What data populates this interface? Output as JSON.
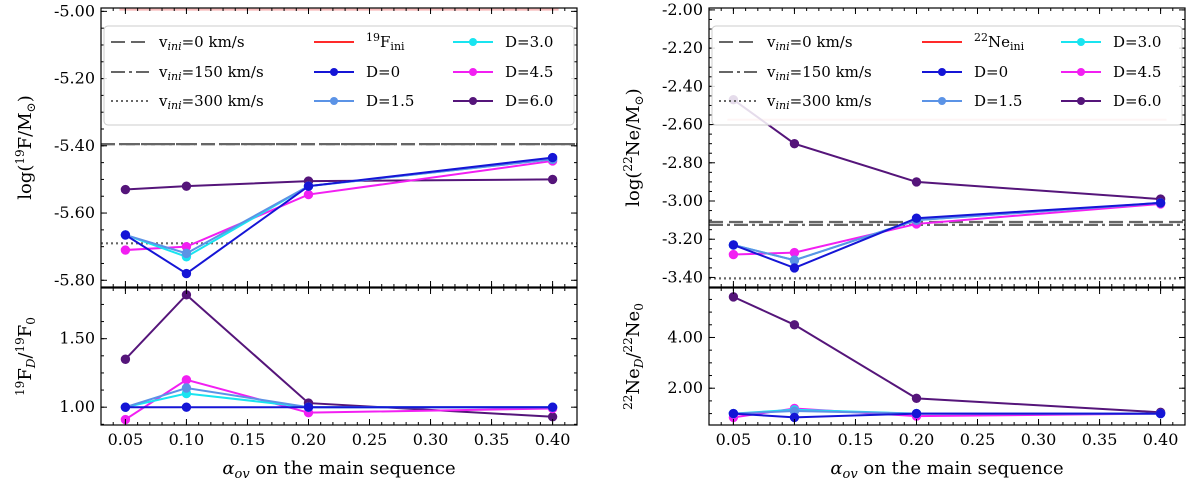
{
  "chart_data": [
    {
      "id": "F",
      "type": "line",
      "x": [
        0.05,
        0.1,
        0.2,
        0.4
      ],
      "xlabel": "on the main sequence",
      "xlabel_symbol": "α",
      "xlabel_sub": "ov",
      "xlim": [
        0.03,
        0.42
      ],
      "xticks": [
        0.05,
        0.1,
        0.15,
        0.2,
        0.25,
        0.3,
        0.35,
        0.4
      ],
      "xtick_labels": [
        "0.05",
        "0.10",
        "0.15",
        "0.20",
        "0.25",
        "0.30",
        "0.35",
        "0.40"
      ],
      "top": {
        "ylabel": "log(19F/M⊙)",
        "ylabel_parts": {
          "pre": "log(",
          "sup": "19",
          "mid": "F/M",
          "sym": "⊙",
          "post": ")"
        },
        "ylim": [
          -5.82,
          -4.99
        ],
        "yticks": [
          -5.8,
          -5.6,
          -5.4,
          -5.2,
          -5.0
        ],
        "ytick_labels": [
          "-5.80",
          "-5.60",
          "-5.40",
          "-5.20",
          "-5.00"
        ],
        "reference_lines": [
          {
            "name": "initial",
            "y": -4.995
          },
          {
            "name": "vini0",
            "y": -5.395
          },
          {
            "name": "vini150",
            "y": -5.395
          },
          {
            "name": "vini300",
            "y": -5.69
          }
        ],
        "series": [
          {
            "name": "D=6.0",
            "values": [
              -5.53,
              -5.52,
              -5.505,
              -5.5
            ]
          },
          {
            "name": "D=4.5",
            "values": [
              -5.71,
              -5.7,
              -5.545,
              -5.445
            ]
          },
          {
            "name": "D=3.0",
            "values": [
              -5.665,
              -5.73,
              -5.52,
              -5.44
            ]
          },
          {
            "name": "D=1.5",
            "values": [
              -5.665,
              -5.72,
              -5.52,
              -5.44
            ]
          },
          {
            "name": "D=0",
            "values": [
              -5.665,
              -5.78,
              -5.52,
              -5.435
            ]
          }
        ]
      },
      "bottom": {
        "ylabel": "19FD/19F0",
        "ylabel_parts": {
          "sup1": "19",
          "a": "F",
          "sub": "D",
          "slash": "/",
          "sup2": "19",
          "b": "F",
          "sub2": "0"
        },
        "ylim": [
          0.87,
          1.87
        ],
        "yticks": [
          1.0,
          1.5
        ],
        "ytick_labels": [
          "1.00",
          "1.50"
        ],
        "series": [
          {
            "name": "D=6.0",
            "values": [
              1.35,
              1.82,
              1.03,
              0.93
            ]
          },
          {
            "name": "D=4.5",
            "values": [
              0.91,
              1.2,
              0.96,
              0.99
            ]
          },
          {
            "name": "D=3.0",
            "values": [
              1.0,
              1.1,
              1.0,
              1.0
            ]
          },
          {
            "name": "D=1.5",
            "values": [
              1.0,
              1.14,
              1.0,
              1.0
            ]
          },
          {
            "name": "D=0",
            "values": [
              1.0,
              1.0,
              1.0,
              1.0
            ]
          }
        ]
      }
    },
    {
      "id": "Ne",
      "type": "line",
      "x": [
        0.05,
        0.1,
        0.2,
        0.4
      ],
      "xlabel": "on the main sequence",
      "xlabel_symbol": "α",
      "xlabel_sub": "ov",
      "xlim": [
        0.03,
        0.42
      ],
      "xticks": [
        0.05,
        0.1,
        0.15,
        0.2,
        0.25,
        0.3,
        0.35,
        0.4
      ],
      "xtick_labels": [
        "0.05",
        "0.10",
        "0.15",
        "0.20",
        "0.25",
        "0.30",
        "0.35",
        "0.40"
      ],
      "top": {
        "ylabel": "log(22Ne/M⊙)",
        "ylabel_parts": {
          "pre": "log(",
          "sup": "22",
          "mid": "Ne/M",
          "sym": "⊙",
          "post": ")"
        },
        "ylim": [
          -3.45,
          -1.99
        ],
        "yticks": [
          -3.4,
          -3.2,
          -3.0,
          -2.8,
          -2.6,
          -2.4,
          -2.2,
          -2.0
        ],
        "ytick_labels": [
          "-3.40",
          "-3.20",
          "-3.00",
          "-2.80",
          "-2.60",
          "-2.40",
          "-2.20",
          "-2.00"
        ],
        "reference_lines": [
          {
            "name": "initial",
            "y": -2.575
          },
          {
            "name": "vini0",
            "y": -3.11
          },
          {
            "name": "vini150",
            "y": -3.125
          },
          {
            "name": "vini300",
            "y": -3.405
          }
        ],
        "series": [
          {
            "name": "D=6.0",
            "values": [
              -2.47,
              -2.7,
              -2.9,
              -2.99
            ]
          },
          {
            "name": "D=4.5",
            "values": [
              -3.28,
              -3.27,
              -3.12,
              -3.015
            ]
          },
          {
            "name": "D=3.0",
            "values": [
              -3.23,
              -3.31,
              -3.1,
              -3.01
            ]
          },
          {
            "name": "D=1.5",
            "values": [
              -3.23,
              -3.31,
              -3.1,
              -3.01
            ]
          },
          {
            "name": "D=0",
            "values": [
              -3.23,
              -3.35,
              -3.09,
              -3.01
            ]
          }
        ]
      },
      "bottom": {
        "ylabel": "22NeD/22Ne0",
        "ylabel_parts": {
          "sup1": "22",
          "a": "Ne",
          "sub": "D",
          "slash": "/",
          "sup2": "22",
          "b": "Ne",
          "sub2": "0"
        },
        "ylim": [
          0.55,
          5.95
        ],
        "yticks": [
          2.0,
          4.0
        ],
        "ytick_labels": [
          "2.00",
          "4.00"
        ],
        "series": [
          {
            "name": "D=6.0",
            "values": [
              5.6,
              4.5,
              1.6,
              1.05
            ]
          },
          {
            "name": "D=4.5",
            "values": [
              0.85,
              1.2,
              0.9,
              1.0
            ]
          },
          {
            "name": "D=3.0",
            "values": [
              1.0,
              1.15,
              1.0,
              1.0
            ]
          },
          {
            "name": "D=1.5",
            "values": [
              1.0,
              1.1,
              1.0,
              1.0
            ]
          },
          {
            "name": "D=0",
            "values": [
              1.0,
              0.85,
              1.0,
              1.0
            ]
          }
        ]
      }
    }
  ],
  "legend": {
    "styles": [
      {
        "key": "vini0",
        "label_sub": "ini",
        "label_rest": "=0 km/s"
      },
      {
        "key": "vini150",
        "label_sub": "ini",
        "label_rest": "=150 km/s"
      },
      {
        "key": "vini300",
        "label_sub": "ini",
        "label_rest": "=300 km/s"
      }
    ],
    "initial_F": {
      "sup": "19",
      "main": "F",
      "sub": "ini"
    },
    "initial_Ne": {
      "sup": "22",
      "main": "Ne",
      "sub": "ini"
    },
    "models": [
      "D=0",
      "D=1.5",
      "D=3.0",
      "D=4.5",
      "D=6.0"
    ]
  },
  "colors": {
    "D=0": "#1515d6",
    "D=1.5": "#5b93e6",
    "D=3.0": "#19e4f0",
    "D=4.5": "#f21ff2",
    "D=6.0": "#55157a",
    "initial": "#ff2a2a",
    "initial_faint": "#f8b9b9",
    "reference": "#666666"
  }
}
